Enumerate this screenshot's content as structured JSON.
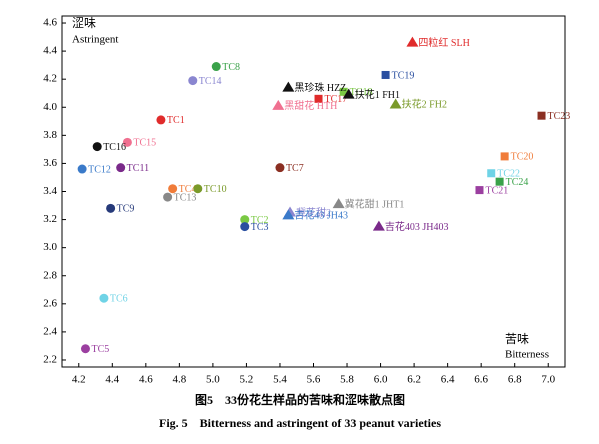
{
  "chart_data": {
    "type": "scatter",
    "y_label_cn": "涩味",
    "y_label_en": "Astringent",
    "x_label_cn": "苦味",
    "x_label_en": "Bitterness",
    "caption_cn": "图5　33份花生样品的苦味和涩味散点图",
    "caption_en": "Fig. 5　Bitterness and astringent of 33 peanut varieties",
    "xlim": [
      4.1,
      7.1
    ],
    "ylim": [
      2.15,
      4.65
    ],
    "xticks": [
      4.2,
      4.4,
      4.6,
      4.8,
      {
        "value": 5,
        "label": "5.0"
      },
      5.2,
      5.4,
      5.6,
      5.8,
      {
        "value": 6,
        "label": "6.0"
      },
      6.2,
      6.4,
      6.6,
      6.8,
      {
        "value": 7,
        "label": "7.0"
      }
    ],
    "yticks": [
      2.2,
      2.4,
      2.6,
      2.8,
      {
        "value": 3,
        "label": "3.0"
      },
      3.2,
      3.4,
      3.6,
      3.8,
      {
        "value": 4,
        "label": "4.0"
      },
      4.2,
      4.4,
      4.6
    ],
    "series": [
      {
        "name": "TC1",
        "color": "#e02b2b",
        "marker": "circle",
        "x": [
          4.69
        ],
        "values": [
          3.91
        ]
      },
      {
        "name": "TC2",
        "color": "#7ac943",
        "marker": "circle",
        "x": [
          5.19
        ],
        "values": [
          3.2
        ]
      },
      {
        "name": "TC3",
        "color": "#2a4fa0",
        "marker": "circle",
        "x": [
          5.19
        ],
        "values": [
          3.15
        ]
      },
      {
        "name": "TC4",
        "color": "#f07c3a",
        "marker": "circle",
        "x": [
          4.76
        ],
        "values": [
          3.42
        ]
      },
      {
        "name": "TC5",
        "color": "#9b3fa0",
        "marker": "circle",
        "x": [
          4.24
        ],
        "values": [
          2.28
        ]
      },
      {
        "name": "TC6",
        "color": "#6fd3e6",
        "marker": "circle",
        "x": [
          4.35
        ],
        "values": [
          2.64
        ]
      },
      {
        "name": "TC7",
        "color": "#8b2f22",
        "marker": "circle",
        "x": [
          5.4
        ],
        "values": [
          3.57
        ]
      },
      {
        "name": "TC8",
        "color": "#3aa24a",
        "marker": "circle",
        "x": [
          5.02
        ],
        "values": [
          4.29
        ]
      },
      {
        "name": "TC9",
        "color": "#263a7a",
        "marker": "circle",
        "x": [
          4.39
        ],
        "values": [
          3.28
        ]
      },
      {
        "name": "TC10",
        "color": "#7a9a2a",
        "marker": "circle",
        "x": [
          4.91
        ],
        "values": [
          3.42
        ]
      },
      {
        "name": "TC11",
        "color": "#7a2a8a",
        "marker": "circle",
        "x": [
          4.45
        ],
        "values": [
          3.57
        ]
      },
      {
        "name": "TC12",
        "color": "#3a7ac9",
        "marker": "circle",
        "x": [
          4.22
        ],
        "values": [
          3.56
        ]
      },
      {
        "name": "TC13",
        "color": "#888888",
        "marker": "circle",
        "x": [
          4.73
        ],
        "values": [
          3.36
        ]
      },
      {
        "name": "TC14",
        "color": "#8a86d0",
        "marker": "circle",
        "x": [
          4.88
        ],
        "values": [
          4.19
        ]
      },
      {
        "name": "TC15",
        "color": "#f07090",
        "marker": "circle",
        "x": [
          4.49
        ],
        "values": [
          3.75
        ]
      },
      {
        "name": "TC16",
        "color": "#111111",
        "marker": "circle",
        "x": [
          4.31
        ],
        "values": [
          3.72
        ]
      },
      {
        "name": "TC17",
        "color": "#e02b2b",
        "marker": "square",
        "x": [
          5.63
        ],
        "values": [
          4.06
        ]
      },
      {
        "name": "TC18",
        "color": "#7ac943",
        "marker": "square",
        "x": [
          5.78
        ],
        "values": [
          4.11
        ]
      },
      {
        "name": "TC19",
        "color": "#2a4fa0",
        "marker": "square",
        "x": [
          6.03
        ],
        "values": [
          4.23
        ]
      },
      {
        "name": "TC20",
        "color": "#f07c3a",
        "marker": "square",
        "x": [
          6.74
        ],
        "values": [
          3.65
        ]
      },
      {
        "name": "TC21",
        "color": "#9b3fa0",
        "marker": "square",
        "x": [
          6.59
        ],
        "values": [
          3.41
        ]
      },
      {
        "name": "TC22",
        "color": "#6fd3e6",
        "marker": "square",
        "x": [
          6.66
        ],
        "values": [
          3.53
        ]
      },
      {
        "name": "TC23",
        "color": "#8b2f22",
        "marker": "square",
        "x": [
          6.96
        ],
        "values": [
          3.94
        ]
      },
      {
        "name": "TC24",
        "color": "#3aa24a",
        "marker": "square",
        "x": [
          6.71
        ],
        "values": [
          3.47
        ]
      },
      {
        "name": "四粒红 SLH",
        "color": "#e02b2b",
        "marker": "triangle",
        "x": [
          6.19
        ],
        "values": [
          4.46
        ]
      },
      {
        "name": "黑珍珠 HZZ",
        "color": "#111111",
        "marker": "triangle",
        "x": [
          5.45
        ],
        "values": [
          4.14
        ]
      },
      {
        "name": "黑甜花 HTH",
        "color": "#f07090",
        "marker": "triangle",
        "x": [
          5.39
        ],
        "values": [
          4.01
        ]
      },
      {
        "name": "扶花1 FH1",
        "color": "#111111",
        "marker": "triangle",
        "x": [
          5.81
        ],
        "values": [
          4.09
        ]
      },
      {
        "name": "扶花2 FH2",
        "color": "#7a9a2a",
        "marker": "triangle",
        "x": [
          6.09
        ],
        "values": [
          4.02
        ]
      },
      {
        "name": "冀花甜1 JHT1",
        "color": "#888888",
        "marker": "triangle",
        "x": [
          5.75
        ],
        "values": [
          3.31
        ]
      },
      {
        "name": "冀花甜2",
        "color": "#8a86d0",
        "marker": "triangle",
        "x": [
          5.46
        ],
        "values": [
          3.25
        ]
      },
      {
        "name": "吉花43 JH43",
        "color": "#3a7ac9",
        "marker": "triangle",
        "x": [
          5.45
        ],
        "values": [
          3.23
        ]
      },
      {
        "name": "吉花403 JH403",
        "color": "#7a2a8a",
        "marker": "triangle",
        "x": [
          5.99
        ],
        "values": [
          3.15
        ]
      }
    ]
  }
}
